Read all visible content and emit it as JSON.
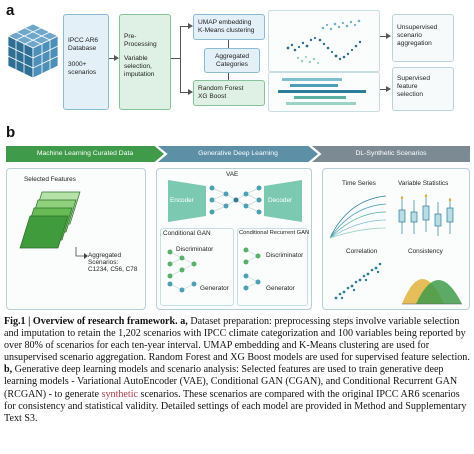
{
  "panel_a": {
    "letter": "a",
    "database_box": {
      "line1": "IPCC AR6",
      "line2": "Database",
      "line3": "3000+",
      "line4": "scenarios"
    },
    "preprocessing_box": {
      "line1": "Pre-",
      "line2": "Processing",
      "line3": "Variable",
      "line4": "selection,",
      "line5": "imputation"
    },
    "umap_box": {
      "line1": "UMAP embedding",
      "line2": "K-Means clustering"
    },
    "aggregated_box": {
      "line1": "Aggregated",
      "line2": "Categories"
    },
    "rf_box": {
      "line1": "Random Forest",
      "line2": "XG Boost"
    },
    "unsupervised_box": {
      "line1": "Unsupervised",
      "line2": "scenario",
      "line3": "aggregation"
    },
    "supervised_box": {
      "line1": "Supervised",
      "line2": "feature",
      "line3": "selection"
    }
  },
  "panel_b": {
    "letter": "b",
    "banners": [
      "Machine Learning Curated Data",
      "Generative Deep Learning",
      "DL-Synthetic Scenarios"
    ],
    "selected_features": "Selected Features",
    "aggregated": {
      "line1": "Aggregated",
      "line2": "Scenarios:",
      "line3": "C1234, C56, C78"
    },
    "vae": {
      "title": "VAE",
      "encoder": "Encoder",
      "decoder": "Decoder"
    },
    "cgan": {
      "title": "Conditional GAN",
      "discriminator": "Discriminator",
      "generator": "Generator"
    },
    "crgan": {
      "title": "Conditional Recurrent GAN",
      "discriminator": "Discriminator",
      "generator": "Generator"
    },
    "outputs": {
      "time_series": "Time Series",
      "variable_statistics": "Variable Statistics",
      "correlation": "Correlation",
      "consistency": "Consistency"
    }
  },
  "caption": {
    "fig_label": "Fig.1 | Overview of research framework.",
    "a_label": "a,",
    "a_text": "Dataset preparation: preprocessing steps involve variable selection and imputation to retain the 1,202 scenarios with IPCC climate categorization and 100 variables being reported by over 80% of scenarios for each ten-year interval. UMAP embedding and K-Means clustering are used for unsupervised scenario aggregation. Random Forest and XG Boost models are used for supervised feature selection.",
    "b_label": "b,",
    "b_text_1": "Generative deep learning models and scenario analysis: Selected features are used to train generative deep learning models - Variational AutoEncoder (VAE), Conditional GAN (CGAN), and Conditional Recurrent GAN (RCGAN) - to generate",
    "b_highlight": "synthetic",
    "b_text_2": "scenarios. These scenarios are compared with the original IPCC AR6 scenarios for consistency and statistical validity. Detailed settings of each model are provided in Method and Supplementary Text S3."
  },
  "colors": {
    "green": "#3f9b4a",
    "teal": "#5d8fa7",
    "grey": "#7c8b93",
    "highlight": "#b33a4a"
  }
}
